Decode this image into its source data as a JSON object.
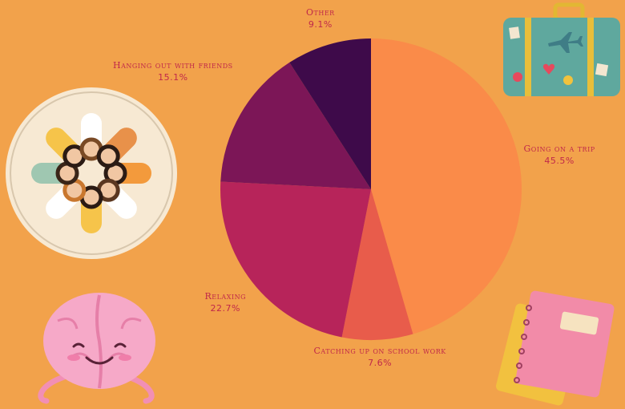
{
  "chart_data": {
    "type": "pie",
    "title": "",
    "slices": [
      {
        "label": "Going on a trip",
        "value": 45.5,
        "value_label": "45.5%",
        "color": "#FA8B49"
      },
      {
        "label": "Catching up on school work",
        "value": 7.6,
        "value_label": "7.6%",
        "color": "#E85C4B"
      },
      {
        "label": "Relaxing",
        "value": 22.7,
        "value_label": "22.7%",
        "color": "#B7245A"
      },
      {
        "label": "Hanging out with friends",
        "value": 15.1,
        "value_label": "15.1%",
        "color": "#7C1657"
      },
      {
        "label": "Other",
        "value": 9.1,
        "value_label": "9.1%",
        "color": "#3E0A4A"
      }
    ],
    "start": "top, clockwise"
  },
  "decorations": {
    "icons": [
      "suitcase-icon",
      "friends-circle-icon",
      "brain-icon",
      "notebooks-icon"
    ],
    "background_color": "#F2A24B",
    "label_color": "#C0284A"
  }
}
